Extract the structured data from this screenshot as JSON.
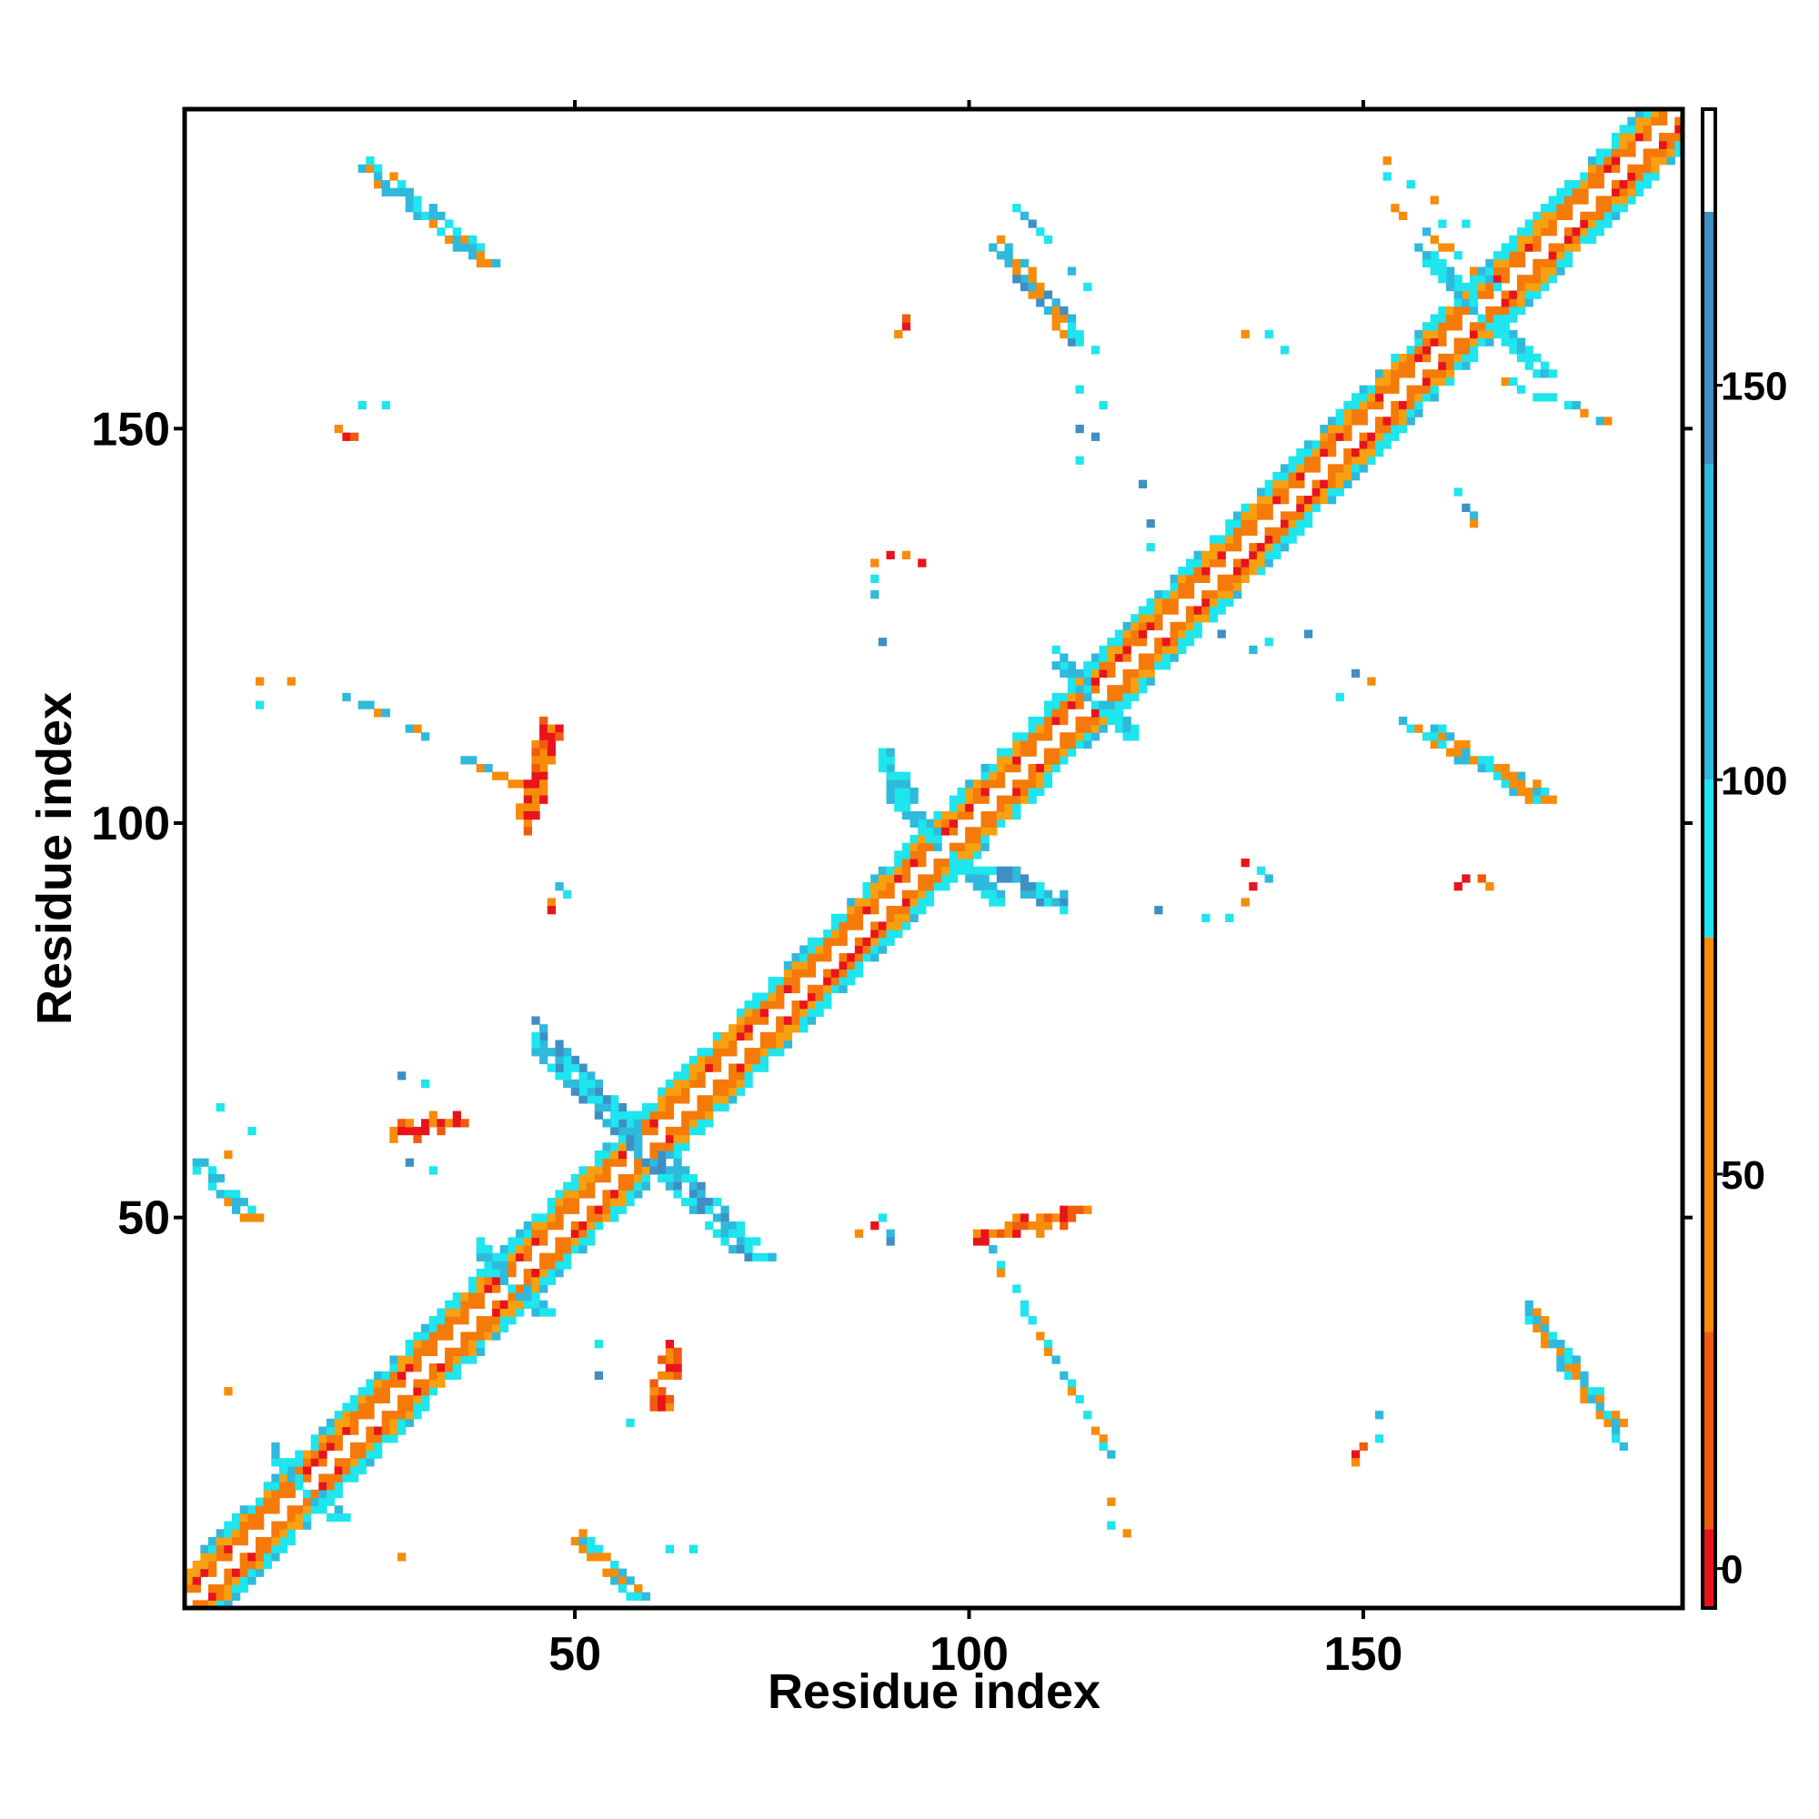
{
  "chart_data": {
    "type": "heatmap",
    "title": "",
    "xlabel": "Residue index",
    "ylabel": "Residue index",
    "xlim": [
      1,
      190
    ],
    "ylim": [
      1,
      190
    ],
    "xticks": [
      50,
      100,
      150
    ],
    "yticks": [
      50,
      100,
      150
    ],
    "xtick_labels": [
      "50",
      "100",
      "150"
    ],
    "ytick_labels": [
      "50",
      "100",
      "150"
    ],
    "grid": false,
    "colorbar": {
      "range": [
        -5,
        185
      ],
      "ticks": [
        0,
        50,
        100,
        150
      ],
      "tick_labels": [
        "0",
        "50",
        "100",
        "150"
      ],
      "bands": [
        {
          "from": -5,
          "to": 5,
          "color": "#e8141c"
        },
        {
          "from": 5,
          "to": 30,
          "color": "#f25a0f"
        },
        {
          "from": 30,
          "to": 80,
          "color": "#f78c0a"
        },
        {
          "from": 80,
          "to": 100,
          "color": "#1ee5ee"
        },
        {
          "from": 100,
          "to": 140,
          "color": "#2fb9dc"
        },
        {
          "from": 140,
          "to": 172,
          "color": "#3f8fc4"
        },
        {
          "from": 172,
          "to": 185,
          "color": "#ffffff"
        }
      ]
    },
    "colors": {
      "diag_red": "#e8141c",
      "diag_orange": "#f57a0a",
      "light_orange": "#f7a010",
      "cyan": "#1ee5ee",
      "light_blue": "#2fb9dc",
      "steel_blue": "#3f8fc4"
    },
    "diagonal_band": {
      "start": 1,
      "end": 190,
      "half_width": 5
    },
    "contact_features": [
      {
        "kind": "hairpin",
        "center": [
          59,
          59
        ],
        "dir": -1,
        "length": 14,
        "width": 2,
        "colors": [
          "#2fb9dc",
          "#1ee5ee",
          "#3f8fc4"
        ]
      },
      {
        "kind": "hairpin",
        "center": [
          97,
          97
        ],
        "dir": -1,
        "length": 7,
        "width": 1,
        "colors": [
          "#2fb9dc",
          "#1ee5ee"
        ]
      },
      {
        "kind": "hairpin",
        "center": [
          165,
          165
        ],
        "dir": -1,
        "length": 8,
        "width": 1,
        "colors": [
          "#2fb9dc",
          "#1ee5ee"
        ]
      },
      {
        "kind": "hairpin",
        "center": [
          116,
          116
        ],
        "dir": -1,
        "length": 5,
        "width": 1,
        "colors": [
          "#2fb9dc",
          "#1ee5ee"
        ]
      },
      {
        "kind": "hairpin",
        "center": [
          16,
          16
        ],
        "dir": -1,
        "length": 4,
        "width": 1,
        "colors": [
          "#2fb9dc",
          "#1ee5ee"
        ]
      },
      {
        "kind": "hairpin",
        "center": [
          42,
          42
        ],
        "dir": -1,
        "length": 4,
        "width": 1,
        "colors": [
          "#2fb9dc",
          "#1ee5ee"
        ]
      },
      {
        "kind": "strand",
        "start": [
          24,
          183
        ],
        "end": [
          39,
          171
        ],
        "width": 1,
        "colors": [
          "#1ee5ee",
          "#f78c0a",
          "#2fb9dc"
        ]
      },
      {
        "kind": "strand",
        "start": [
          171,
          38
        ],
        "end": [
          183,
          22
        ],
        "width": 1,
        "colors": [
          "#1ee5ee",
          "#f78c0a",
          "#2fb9dc"
        ]
      },
      {
        "kind": "strand",
        "start": [
          104,
          173
        ],
        "end": [
          115,
          160
        ],
        "width": 1,
        "colors": [
          "#1ee5ee",
          "#f78c0a",
          "#2fb9dc",
          "#3f8fc4"
        ]
      },
      {
        "kind": "strand",
        "start": [
          156,
          113
        ],
        "end": [
          173,
          103
        ],
        "width": 1,
        "colors": [
          "#1ee5ee",
          "#f78c0a",
          "#2fb9dc"
        ]
      },
      {
        "kind": "strand",
        "start": [
          20,
          117
        ],
        "end": [
          46,
          103
        ],
        "width": 0,
        "colors": [
          "#1ee5ee",
          "#2fb9dc",
          "#f78c0a"
        ]
      },
      {
        "kind": "strand",
        "start": [
          102,
          47
        ],
        "end": [
          118,
          20
        ],
        "width": 0,
        "colors": [
          "#1ee5ee",
          "#2fb9dc",
          "#f78c0a"
        ]
      },
      {
        "kind": "strand",
        "start": [
          47,
          113
        ],
        "end": [
          44,
          100
        ],
        "width": 1,
        "colors": [
          "#f78c0a",
          "#f25a0f",
          "#e8141c"
        ]
      },
      {
        "kind": "strand",
        "start": [
          101,
          47
        ],
        "end": [
          114,
          51
        ],
        "width": 1,
        "colors": [
          "#f78c0a",
          "#f25a0f",
          "#e8141c"
        ]
      },
      {
        "kind": "strand",
        "start": [
          2,
          57
        ],
        "end": [
          9,
          50
        ],
        "width": 1,
        "colors": [
          "#1ee5ee",
          "#2fb9dc",
          "#f78c0a"
        ]
      },
      {
        "kind": "strand",
        "start": [
          51,
          9
        ],
        "end": [
          58,
          2
        ],
        "width": 1,
        "colors": [
          "#1ee5ee",
          "#2fb9dc",
          "#f78c0a"
        ]
      },
      {
        "kind": "strand",
        "start": [
          89,
          109
        ],
        "end": [
          93,
          101
        ],
        "width": 1,
        "colors": [
          "#2fb9dc",
          "#1ee5ee"
        ]
      },
      {
        "kind": "strand",
        "start": [
          103,
          94
        ],
        "end": [
          112,
          90
        ],
        "width": 1,
        "colors": [
          "#2fb9dc",
          "#1ee5ee",
          "#3f8fc4"
        ]
      },
      {
        "kind": "strand",
        "start": [
          27,
          61
        ],
        "end": [
          35,
          62
        ],
        "width": 1,
        "colors": [
          "#e8141c",
          "#f25a0f",
          "#f78c0a"
        ]
      },
      {
        "kind": "strand",
        "start": [
          61,
          26
        ],
        "end": [
          62,
          33
        ],
        "width": 1,
        "colors": [
          "#e8141c",
          "#f25a0f",
          "#f78c0a"
        ]
      },
      {
        "kind": "strand",
        "start": [
          106,
          178
        ],
        "end": [
          117,
          166
        ],
        "width": 0,
        "colors": [
          "#2fb9dc",
          "#1ee5ee",
          "#3f8fc4"
        ]
      },
      {
        "kind": "strand",
        "start": [
          154,
          178
        ],
        "end": [
          168,
          167
        ],
        "width": 0,
        "colors": [
          "#f78c0a",
          "#1ee5ee",
          "#2fb9dc"
        ]
      },
      {
        "kind": "strand",
        "start": [
          168,
          156
        ],
        "end": [
          181,
          151
        ],
        "width": 0,
        "colors": [
          "#1ee5ee",
          "#2fb9dc",
          "#f78c0a"
        ]
      }
    ],
    "contact_points": [
      {
        "x": 92,
        "y": 163,
        "color": "#e8141c"
      },
      {
        "x": 92,
        "y": 164,
        "color": "#f25a0f"
      },
      {
        "x": 91,
        "y": 162,
        "color": "#f78c0a"
      },
      {
        "x": 21,
        "y": 149,
        "color": "#e8141c"
      },
      {
        "x": 22,
        "y": 149,
        "color": "#f25a0f"
      },
      {
        "x": 20,
        "y": 150,
        "color": "#f78c0a"
      },
      {
        "x": 23,
        "y": 153,
        "color": "#1ee5ee"
      },
      {
        "x": 26,
        "y": 153,
        "color": "#1ee5ee"
      },
      {
        "x": 90,
        "y": 134,
        "color": "#e8141c"
      },
      {
        "x": 92,
        "y": 134,
        "color": "#f78c0a"
      },
      {
        "x": 94,
        "y": 133,
        "color": "#e8141c"
      },
      {
        "x": 88,
        "y": 133,
        "color": "#f78c0a"
      },
      {
        "x": 88,
        "y": 131,
        "color": "#1ee5ee"
      },
      {
        "x": 88,
        "y": 129,
        "color": "#2fb9dc"
      },
      {
        "x": 89,
        "y": 123,
        "color": "#3f8fc4"
      },
      {
        "x": 48,
        "y": 92,
        "color": "#2fb9dc"
      },
      {
        "x": 49,
        "y": 91,
        "color": "#1ee5ee"
      },
      {
        "x": 47,
        "y": 90,
        "color": "#f78c0a"
      },
      {
        "x": 47,
        "y": 89,
        "color": "#e8141c"
      },
      {
        "x": 28,
        "y": 68,
        "color": "#3f8fc4"
      },
      {
        "x": 31,
        "y": 67,
        "color": "#1ee5ee"
      },
      {
        "x": 53,
        "y": 30,
        "color": "#3f8fc4"
      },
      {
        "x": 57,
        "y": 24,
        "color": "#1ee5ee"
      },
      {
        "x": 62,
        "y": 34,
        "color": "#e8141c"
      },
      {
        "x": 63,
        "y": 33,
        "color": "#f25a0f"
      },
      {
        "x": 60,
        "y": 28,
        "color": "#f78c0a"
      },
      {
        "x": 61,
        "y": 27,
        "color": "#e8141c"
      },
      {
        "x": 53,
        "y": 34,
        "color": "#1ee5ee"
      },
      {
        "x": 86,
        "y": 48,
        "color": "#f78c0a"
      },
      {
        "x": 88,
        "y": 49,
        "color": "#e8141c"
      },
      {
        "x": 90,
        "y": 48,
        "color": "#2fb9dc"
      },
      {
        "x": 90,
        "y": 47,
        "color": "#3f8fc4"
      },
      {
        "x": 89,
        "y": 50,
        "color": "#1ee5ee"
      },
      {
        "x": 6,
        "y": 58,
        "color": "#f78c0a"
      },
      {
        "x": 5,
        "y": 64,
        "color": "#1ee5ee"
      },
      {
        "x": 9,
        "y": 61,
        "color": "#1ee5ee"
      },
      {
        "x": 29,
        "y": 57,
        "color": "#3f8fc4"
      },
      {
        "x": 32,
        "y": 56,
        "color": "#1ee5ee"
      },
      {
        "x": 6,
        "y": 28,
        "color": "#f78c0a"
      },
      {
        "x": 28,
        "y": 7,
        "color": "#f78c0a"
      },
      {
        "x": 62,
        "y": 8,
        "color": "#1ee5ee"
      },
      {
        "x": 65,
        "y": 8,
        "color": "#1ee5ee"
      },
      {
        "x": 118,
        "y": 11,
        "color": "#1ee5ee"
      },
      {
        "x": 118,
        "y": 14,
        "color": "#f78c0a"
      },
      {
        "x": 120,
        "y": 10,
        "color": "#f78c0a"
      },
      {
        "x": 149,
        "y": 20,
        "color": "#e8141c"
      },
      {
        "x": 150,
        "y": 21,
        "color": "#f25a0f"
      },
      {
        "x": 149,
        "y": 19,
        "color": "#f78c0a"
      },
      {
        "x": 152,
        "y": 22,
        "color": "#1ee5ee"
      },
      {
        "x": 152,
        "y": 25,
        "color": "#2fb9dc"
      },
      {
        "x": 135,
        "y": 95,
        "color": "#e8141c"
      },
      {
        "x": 136,
        "y": 92,
        "color": "#e8141c"
      },
      {
        "x": 135,
        "y": 90,
        "color": "#f78c0a"
      },
      {
        "x": 137,
        "y": 94,
        "color": "#1ee5ee"
      },
      {
        "x": 138,
        "y": 93,
        "color": "#2fb9dc"
      },
      {
        "x": 133,
        "y": 88,
        "color": "#1ee5ee"
      },
      {
        "x": 130,
        "y": 88,
        "color": "#1ee5ee"
      },
      {
        "x": 124,
        "y": 89,
        "color": "#3f8fc4"
      },
      {
        "x": 163,
        "y": 93,
        "color": "#e8141c"
      },
      {
        "x": 165,
        "y": 93,
        "color": "#f25a0f"
      },
      {
        "x": 162,
        "y": 92,
        "color": "#e8141c"
      },
      {
        "x": 166,
        "y": 92,
        "color": "#f78c0a"
      },
      {
        "x": 163,
        "y": 140,
        "color": "#3f8fc4"
      },
      {
        "x": 164,
        "y": 139,
        "color": "#2fb9dc"
      },
      {
        "x": 164,
        "y": 138,
        "color": "#f78c0a"
      },
      {
        "x": 162,
        "y": 142,
        "color": "#1ee5ee"
      },
      {
        "x": 122,
        "y": 143,
        "color": "#3f8fc4"
      },
      {
        "x": 123,
        "y": 138,
        "color": "#3f8fc4"
      },
      {
        "x": 123,
        "y": 135,
        "color": "#1ee5ee"
      },
      {
        "x": 143,
        "y": 124,
        "color": "#3f8fc4"
      },
      {
        "x": 138,
        "y": 123,
        "color": "#1ee5ee"
      },
      {
        "x": 132,
        "y": 124,
        "color": "#3f8fc4"
      },
      {
        "x": 136,
        "y": 122,
        "color": "#2fb9dc"
      },
      {
        "x": 149,
        "y": 119,
        "color": "#3f8fc4"
      },
      {
        "x": 147,
        "y": 116,
        "color": "#1ee5ee"
      },
      {
        "x": 151,
        "y": 118,
        "color": "#f78c0a"
      },
      {
        "x": 135,
        "y": 162,
        "color": "#f78c0a"
      },
      {
        "x": 138,
        "y": 162,
        "color": "#1ee5ee"
      },
      {
        "x": 140,
        "y": 160,
        "color": "#1ee5ee"
      },
      {
        "x": 114,
        "y": 155,
        "color": "#1ee5ee"
      },
      {
        "x": 117,
        "y": 153,
        "color": "#1ee5ee"
      },
      {
        "x": 114,
        "y": 150,
        "color": "#3f8fc4"
      },
      {
        "x": 116,
        "y": 149,
        "color": "#3f8fc4"
      },
      {
        "x": 114,
        "y": 146,
        "color": "#1ee5ee"
      },
      {
        "x": 10,
        "y": 118,
        "color": "#f78c0a"
      },
      {
        "x": 14,
        "y": 118,
        "color": "#f78c0a"
      },
      {
        "x": 10,
        "y": 115,
        "color": "#1ee5ee"
      },
      {
        "x": 153,
        "y": 184,
        "color": "#f78c0a"
      },
      {
        "x": 153,
        "y": 182,
        "color": "#1ee5ee"
      },
      {
        "x": 156,
        "y": 181,
        "color": "#1ee5ee"
      },
      {
        "x": 159,
        "y": 179,
        "color": "#f78c0a"
      },
      {
        "x": 160,
        "y": 176,
        "color": "#1ee5ee"
      },
      {
        "x": 163,
        "y": 176,
        "color": "#1ee5ee"
      }
    ]
  }
}
